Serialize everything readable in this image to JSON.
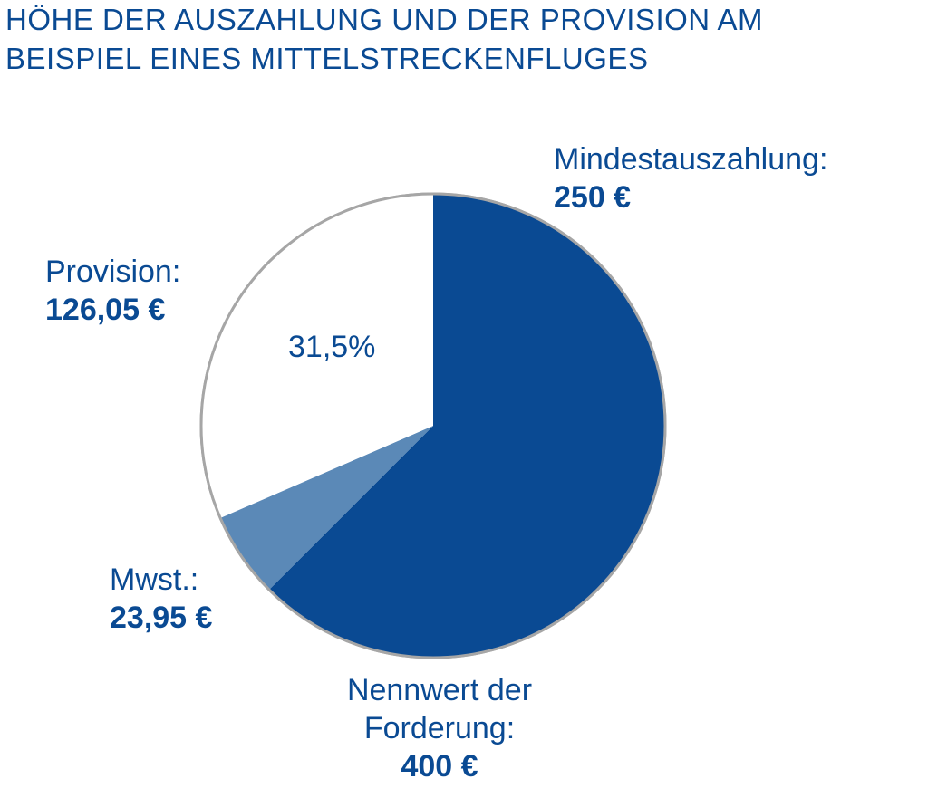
{
  "title_lines": [
    "HÖHE DER AUSZAHLUNG UND DER  PROVISION AM",
    "BEISPIEL EINES MITTELSTRECKENFLUGES"
  ],
  "chart_data": {
    "type": "pie",
    "slices": [
      {
        "key": "mindest",
        "name": "Mindestauszahlung:",
        "amount_text": "250 €",
        "value": 250,
        "color": "#0a4a93"
      },
      {
        "key": "mwst",
        "name": "Mwst.:",
        "amount_text": "23,95 €",
        "value": 23.95,
        "color": "#5b89b7"
      },
      {
        "key": "provision",
        "name": "Provision:",
        "amount_text": "126,05 €",
        "value": 126.05,
        "color": "#ffffff",
        "percent_label": "31,5%"
      }
    ],
    "total": {
      "name_line1": "Nennwert der",
      "name_line2": "Forderung:",
      "amount_text": "400 €",
      "value": 400
    },
    "outline_color": "#a6a6a6",
    "text_color": "#0a4a93"
  }
}
